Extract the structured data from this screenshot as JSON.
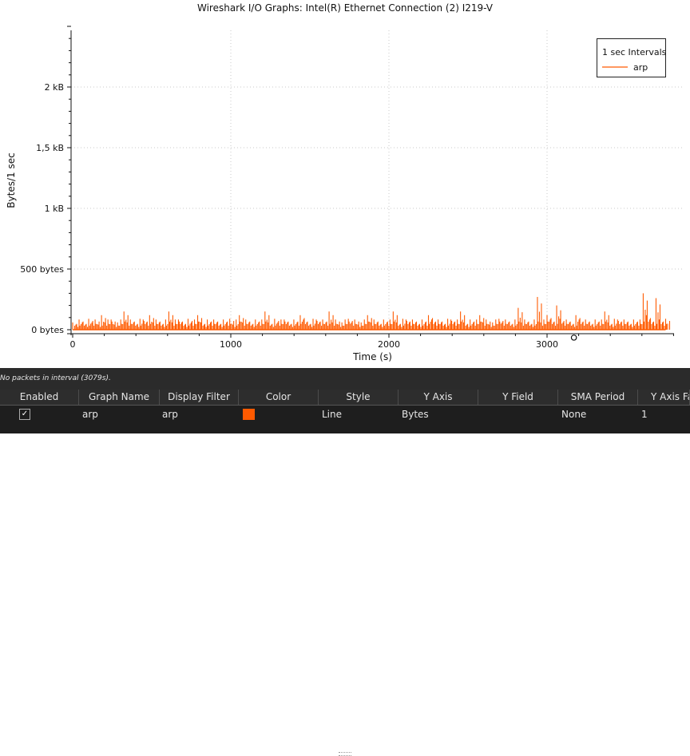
{
  "window": {
    "title": "Wireshark I/O Graphs: Intel(R) Ethernet Connection (2) I219-V"
  },
  "status": {
    "text": "No packets in interval (3079s)."
  },
  "colors": {
    "series": "#ff5a00",
    "grid": "#c8c8c8",
    "panel_bg": "#1e1e1e"
  },
  "chart_data": {
    "type": "line",
    "title": "Wireshark I/O Graphs: Intel(R) Ethernet Connection (2) I219-V",
    "xlabel": "Time (s)",
    "ylabel": "Bytes/1 sec",
    "xlim": [
      0,
      3800
    ],
    "ylim": [
      0,
      2500
    ],
    "xticks": [
      0,
      1000,
      2000,
      3000
    ],
    "xtick_labels": [
      "0",
      "1000",
      "2000",
      "3000"
    ],
    "yticks": [
      0,
      500,
      1000,
      1500,
      2000
    ],
    "ytick_labels": [
      "0 bytes",
      "500 bytes",
      "1 kB",
      "1,5 kB",
      "2 kB"
    ],
    "grid": true,
    "legend": {
      "title": "1 sec Intervals",
      "placement": "top-right"
    },
    "series": [
      {
        "name": "arp",
        "color": "#ff5a00",
        "x_start": 0,
        "x_end": 3750,
        "x_step": 25,
        "values": [
          60,
          42,
          84,
          60,
          42,
          90,
          60,
          84,
          42,
          120,
          60,
          84,
          84,
          42,
          60,
          84,
          150,
          60,
          84,
          60,
          42,
          90,
          84,
          60,
          120,
          60,
          84,
          60,
          42,
          84,
          150,
          60,
          84,
          84,
          60,
          42,
          90,
          60,
          84,
          120,
          60,
          42,
          84,
          60,
          84,
          60,
          42,
          84,
          60,
          90,
          42,
          84,
          120,
          60,
          84,
          60,
          42,
          84,
          60,
          84,
          150,
          60,
          42,
          90,
          60,
          84,
          84,
          60,
          42,
          84,
          60,
          120,
          84,
          60,
          42,
          90,
          84,
          60,
          84,
          60,
          150,
          60,
          84,
          42,
          60,
          84,
          90,
          60,
          84,
          42,
          60,
          84,
          120,
          60,
          84,
          60,
          42,
          84,
          60,
          84,
          150,
          60,
          42,
          90,
          84,
          60,
          84,
          60,
          42,
          84,
          60,
          120,
          84,
          60,
          84,
          60,
          42,
          90,
          84,
          60,
          84,
          150,
          60,
          42,
          84,
          60,
          84,
          120,
          60,
          84,
          42,
          60,
          84,
          90,
          60,
          84,
          60,
          42,
          84,
          180,
          60,
          84,
          60,
          42,
          84,
          270,
          60,
          84,
          120,
          84,
          60,
          200,
          90,
          60,
          84,
          60,
          42,
          120,
          84,
          60,
          84,
          60,
          42,
          84,
          60,
          84,
          150,
          60,
          42,
          90,
          84,
          60,
          84,
          60,
          42,
          84,
          60,
          84,
          300,
          120,
          84,
          60,
          260,
          84,
          60,
          90
        ]
      }
    ],
    "marker": {
      "x": 3079,
      "y": 60
    }
  },
  "table": {
    "headers": [
      "Enabled",
      "Graph Name",
      "Display Filter",
      "Color",
      "Style",
      "Y Axis",
      "Y Field",
      "SMA Period",
      "Y Axis Fa"
    ],
    "rows": [
      {
        "enabled": "✓",
        "graph_name": "arp",
        "display_filter": "arp",
        "color": "#ff5a00",
        "style": "Line",
        "y_axis": "Bytes",
        "y_field": "",
        "sma_period": "None",
        "y_axis_factor": "1"
      }
    ]
  }
}
